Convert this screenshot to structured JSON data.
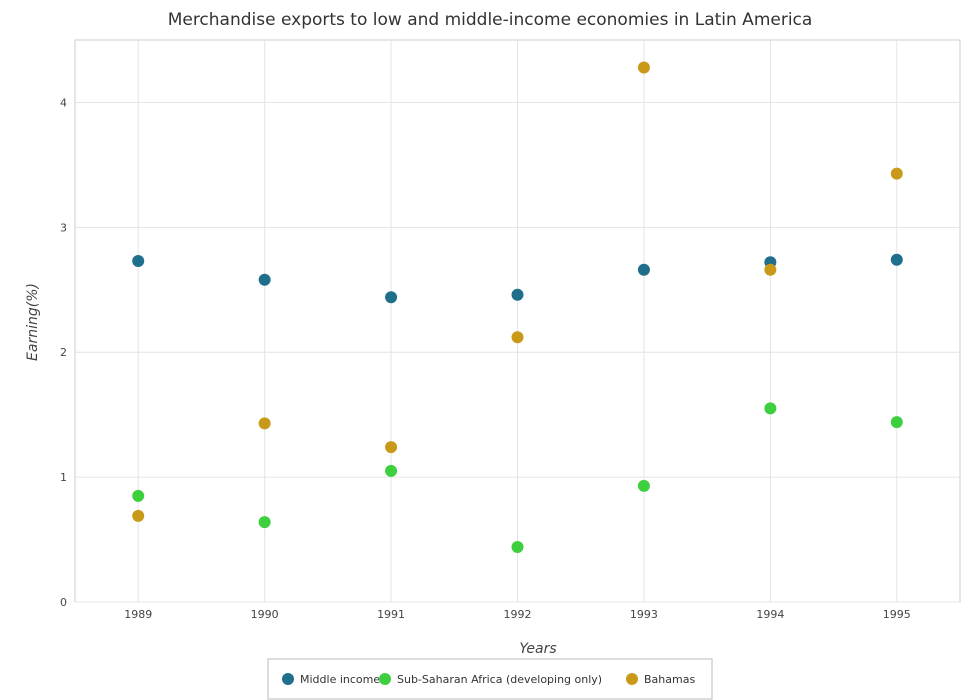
{
  "chart_data": {
    "type": "scatter",
    "title": "Merchandise exports to low and middle-income economies in Latin America",
    "xlabel": "Years",
    "ylabel": "Earning(%)",
    "categories": [
      "1989",
      "1990",
      "1991",
      "1992",
      "1993",
      "1994",
      "1995"
    ],
    "ylim": [
      0,
      4.5
    ],
    "yticks": [
      0,
      1,
      2,
      3,
      4
    ],
    "grid": true,
    "legend_position": "bottom-center",
    "series": [
      {
        "name": "Middle income",
        "color": "#1f6e8c",
        "values": [
          2.73,
          2.58,
          2.44,
          2.46,
          2.66,
          2.72,
          2.74
        ]
      },
      {
        "name": "Sub-Saharan Africa (developing only)",
        "color": "#3ecf3e",
        "values": [
          0.85,
          0.64,
          1.05,
          0.44,
          0.93,
          1.55,
          1.44
        ]
      },
      {
        "name": "Bahamas",
        "color": "#c99a1a",
        "values": [
          0.69,
          1.43,
          1.24,
          2.12,
          4.28,
          2.66,
          3.43
        ]
      }
    ]
  }
}
